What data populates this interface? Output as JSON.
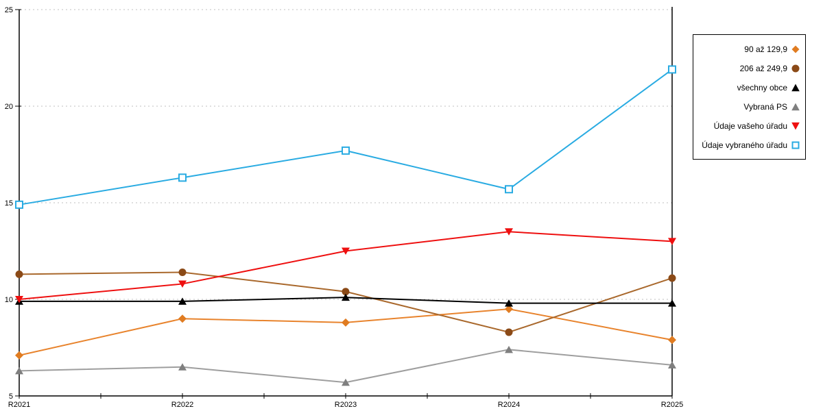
{
  "chart_data": {
    "type": "line",
    "title": "",
    "xlabel": "",
    "ylabel": "",
    "categories": [
      "R2021",
      "R2022",
      "R2023",
      "R2024",
      "R2025"
    ],
    "series": [
      {
        "name": "90 až 129,9",
        "marker": "diamond",
        "color": "#E07C21",
        "line_color": "#E8832C",
        "values": [
          7.1,
          9.0,
          8.8,
          9.5,
          7.9
        ]
      },
      {
        "name": "206 až 249,9",
        "marker": "circle",
        "color": "#8B4A17",
        "line_color": "#A9682C",
        "values": [
          11.3,
          11.4,
          10.4,
          8.3,
          11.1
        ]
      },
      {
        "name": "všechny obce",
        "marker": "triangle-up",
        "color": "#000000",
        "line_color": "#000000",
        "values": [
          9.9,
          9.9,
          10.1,
          9.8,
          9.8
        ]
      },
      {
        "name": "Vybraná PS",
        "marker": "triangle-up",
        "color": "#7F7F7F",
        "line_color": "#9E9E9E",
        "values": [
          6.3,
          6.5,
          5.7,
          7.4,
          6.6
        ]
      },
      {
        "name": "Údaje vašeho úřadu",
        "marker": "triangle-down",
        "color": "#EE0F0F",
        "line_color": "#EE0F0F",
        "values": [
          10.0,
          10.8,
          12.5,
          13.5,
          13.0
        ]
      },
      {
        "name": "Údaje vybraného úřadu",
        "marker": "square-open",
        "color": "#29ABE2",
        "line_color": "#29ABE2",
        "values": [
          14.9,
          16.3,
          17.7,
          15.7,
          21.9
        ]
      }
    ],
    "ylim": [
      5,
      25
    ],
    "yticks": [
      5,
      10,
      15,
      20,
      25
    ],
    "grid": "horizontal-dashed",
    "legend_position": "right"
  },
  "colors": {
    "background": "#FFFFFF",
    "axis": "#000000",
    "grid": "#BFBFBF",
    "tick_label": "#000000",
    "legend_border": "#000000"
  }
}
